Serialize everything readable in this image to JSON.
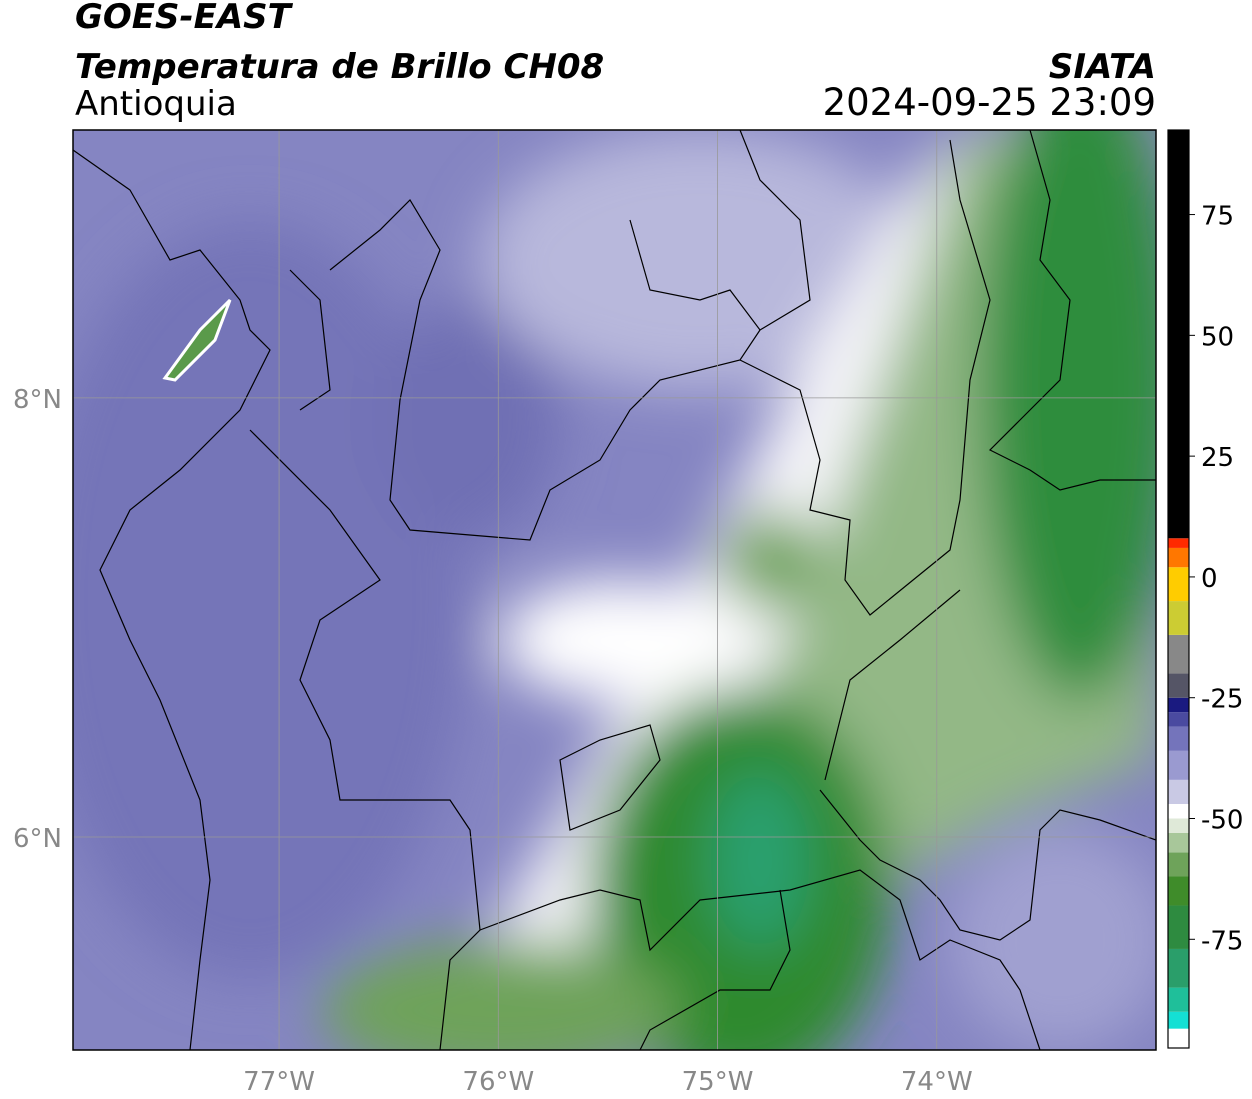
{
  "header": {
    "title": "GOES-EAST",
    "subtitle": "Temperatura de Brillo CH08",
    "region": "Antioquia",
    "source": "SIATA",
    "datetime": "2024-09-25 23:09"
  },
  "map": {
    "xlim": [
      -77.94,
      -73.0
    ],
    "ylim": [
      5.03,
      9.22
    ],
    "xticks": [
      {
        "value": -77,
        "label": "77°W"
      },
      {
        "value": -76,
        "label": "76°W"
      },
      {
        "value": -75,
        "label": "75°W"
      },
      {
        "value": -74,
        "label": "74°W"
      }
    ],
    "yticks": [
      {
        "value": 6,
        "label": "6°N"
      },
      {
        "value": 8,
        "label": "8°N"
      }
    ],
    "grid": true
  },
  "colorbar": {
    "lim": [
      -97.5,
      92.5
    ],
    "ticks": [
      -75,
      -50,
      -25,
      0,
      25,
      50,
      75
    ],
    "stops": [
      {
        "value": -97.5,
        "color": "#ffffff"
      },
      {
        "value": -93.5,
        "color": "#14e0d4"
      },
      {
        "value": -90,
        "color": "#1fbf9a"
      },
      {
        "value": -85,
        "color": "#2a9e6a"
      },
      {
        "value": -77,
        "color": "#2e8b40"
      },
      {
        "value": -68,
        "color": "#3f8c2a"
      },
      {
        "value": -62,
        "color": "#6ea35a"
      },
      {
        "value": -57,
        "color": "#a8c79a"
      },
      {
        "value": -53,
        "color": "#dfe9d8"
      },
      {
        "value": -50,
        "color": "#ffffff"
      },
      {
        "value": -47,
        "color": "#c9c9e4"
      },
      {
        "value": -42,
        "color": "#9a9ad0"
      },
      {
        "value": -36,
        "color": "#7474bb"
      },
      {
        "value": -31,
        "color": "#4a4aa0"
      },
      {
        "value": -28,
        "color": "#1a1a80"
      },
      {
        "value": -25,
        "color": "#555566"
      },
      {
        "value": -20,
        "color": "#888888"
      },
      {
        "value": -12,
        "color": "#cccc33"
      },
      {
        "value": -5,
        "color": "#ffcc00"
      },
      {
        "value": 2,
        "color": "#ff7700"
      },
      {
        "value": 6,
        "color": "#ff2a00"
      },
      {
        "value": 8,
        "color": "#000000"
      }
    ]
  }
}
